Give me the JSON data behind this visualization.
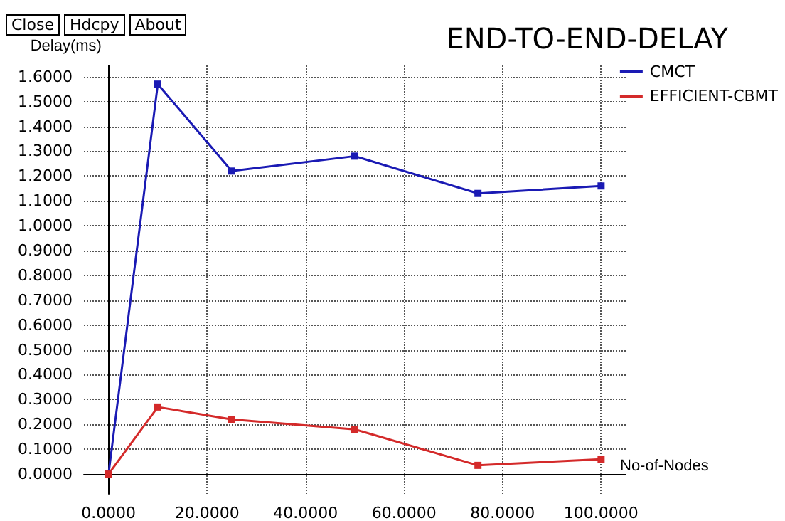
{
  "chart_data": {
    "type": "line",
    "title": "END-TO-END-DELAY",
    "xlabel": "No-of-Nodes",
    "ylabel": "Delay(ms)",
    "annotations": [
      "Close",
      "Hdcpy",
      "About"
    ],
    "series": [
      {
        "name": "CMCT",
        "color": "#1a1ab4",
        "x": [
          0,
          10,
          25,
          50,
          75,
          100
        ],
        "values": [
          0,
          1.57,
          1.22,
          1.28,
          1.13,
          1.16
        ]
      },
      {
        "name": "EFFICIENT-CBMT",
        "color": "#d42a2a",
        "x": [
          0,
          10,
          25,
          50,
          75,
          100
        ],
        "values": [
          0,
          0.27,
          0.22,
          0.18,
          0.035,
          0.06
        ]
      }
    ],
    "xlim": [
      -5,
      105
    ],
    "xticks": [
      {
        "value": 0,
        "label": "0.0000"
      },
      {
        "value": 20,
        "label": "20.0000"
      },
      {
        "value": 40,
        "label": "40.0000"
      },
      {
        "value": 60,
        "label": "60.0000"
      },
      {
        "value": 80,
        "label": "80.0000"
      },
      {
        "value": 100,
        "label": "100.0000"
      }
    ],
    "ylim": [
      -0.08,
      1.645
    ],
    "yticks": [
      {
        "value": 0,
        "label": "0.0000"
      },
      {
        "value": 0.1,
        "label": "0.1000"
      },
      {
        "value": 0.2,
        "label": "0.2000"
      },
      {
        "value": 0.3,
        "label": "0.3000"
      },
      {
        "value": 0.4,
        "label": "0.4000"
      },
      {
        "value": 0.5,
        "label": "0.5000"
      },
      {
        "value": 0.6,
        "label": "0.6000"
      },
      {
        "value": 0.7,
        "label": "0.7000"
      },
      {
        "value": 0.8,
        "label": "0.8000"
      },
      {
        "value": 0.9,
        "label": "0.9000"
      },
      {
        "value": 1,
        "label": "1.0000"
      },
      {
        "value": 1.1,
        "label": "1.1000"
      },
      {
        "value": 1.2,
        "label": "1.2000"
      },
      {
        "value": 1.3,
        "label": "1.3000"
      },
      {
        "value": 1.4,
        "label": "1.4000"
      },
      {
        "value": 1.5,
        "label": "1.5000"
      },
      {
        "value": 1.6,
        "label": "1.6000"
      }
    ],
    "grid": true,
    "legend": "top right",
    "marker": "square",
    "line_style": "solid"
  }
}
